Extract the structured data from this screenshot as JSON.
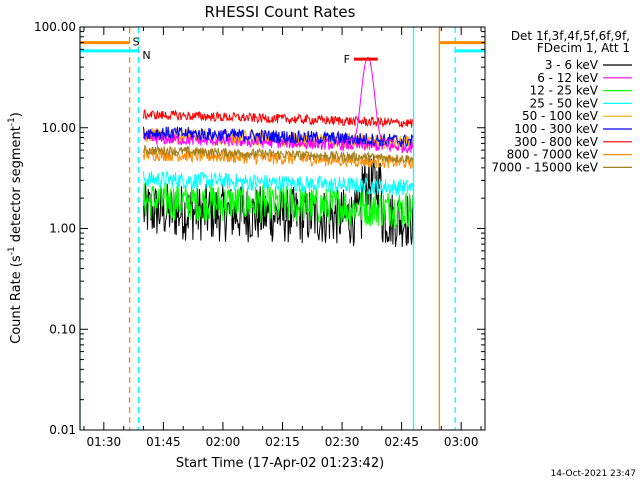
{
  "chart_data": {
    "type": "line",
    "title": "RHESSI Count Rates",
    "xlabel": "Start Time (17-Apr-02 01:23:42)",
    "ylabel_main": "Count Rate (s",
    "ylabel_sup1": "-1",
    "ylabel_mid": " detector segment",
    "ylabel_sup2": "-1",
    "ylabel_end": ")",
    "yscale": "log",
    "ylim": [
      0.01,
      100
    ],
    "xlim_minutes": [
      84,
      186
    ],
    "x_tick_labels": [
      {
        "m": 90,
        "label": "01:30"
      },
      {
        "m": 105,
        "label": "01:45"
      },
      {
        "m": 120,
        "label": "02:00"
      },
      {
        "m": 135,
        "label": "02:15"
      },
      {
        "m": 150,
        "label": "02:30"
      },
      {
        "m": 165,
        "label": "02:45"
      },
      {
        "m": 180,
        "label": "03:00"
      }
    ],
    "y_tick_labels": [
      {
        "v": 100,
        "label": "100.00"
      },
      {
        "v": 10,
        "label": "10.00"
      },
      {
        "v": 1,
        "label": "1.00"
      },
      {
        "v": 0.1,
        "label": "0.10"
      },
      {
        "v": 0.01,
        "label": "0.01"
      }
    ],
    "legend_header": [
      "Det 1f,3f,4f,5f,6f,9f,",
      "FDecim 1, Att 1"
    ],
    "series": [
      {
        "name": "3 - 6 keV",
        "color": "#000000",
        "start_m": 100,
        "end_m": 168,
        "base": 1.5,
        "noise": 0.3
      },
      {
        "name": "6 - 12 keV",
        "color": "#ff00ff",
        "start_m": 100,
        "end_m": 168,
        "base": 7.8,
        "noise": 0.06
      },
      {
        "name": "12 - 25 keV",
        "color": "#00ff00",
        "start_m": 100,
        "end_m": 168,
        "base": 1.9,
        "noise": 0.2
      },
      {
        "name": "25 - 50 keV",
        "color": "#00ffff",
        "start_m": 100,
        "end_m": 168,
        "base": 3.1,
        "noise": 0.09
      },
      {
        "name": "50 - 100 keV",
        "color": "#ffa500",
        "start_m": 100,
        "end_m": 168,
        "base": 8.5,
        "noise": 0.08
      },
      {
        "name": "100 - 300 keV",
        "color": "#0000ff",
        "start_m": 100,
        "end_m": 168,
        "base": 9.0,
        "noise": 0.07
      },
      {
        "name": "300 - 800 keV",
        "color": "#ff0000",
        "start_m": 100,
        "end_m": 168,
        "base": 13.5,
        "noise": 0.05
      },
      {
        "name": "800 - 7000 keV",
        "color": "#ff8c00",
        "start_m": 100,
        "end_m": 168,
        "base": 5.5,
        "noise": 0.07
      },
      {
        "name": "7000 - 15000 keV",
        "color": "#a08020",
        "start_m": 100,
        "end_m": 168,
        "base": 6.0,
        "noise": 0.05
      }
    ],
    "flare": {
      "label": "F",
      "color": "#ff0000",
      "start_m": 153,
      "end_m": 159,
      "level": 48,
      "peak_m": 156.5,
      "peak": 50,
      "curve_color": "#ff00ff"
    },
    "saa": {
      "label": "S",
      "color": "#ff8c00",
      "start_m": 84,
      "end_m": 96.5,
      "resume_m": 174.5,
      "level": 70
    },
    "night": {
      "label": "N",
      "color": "#00ffff",
      "start_m": 84,
      "end_m": 98.7,
      "resume_m": 178.5,
      "level": 58
    },
    "markers": [
      {
        "m": 84,
        "color": "#00ffff",
        "dash": false
      },
      {
        "m": 96.5,
        "color": "#ff8c00",
        "dash": true
      },
      {
        "m": 98.7,
        "color": "#00ffff",
        "dash": true
      },
      {
        "m": 168,
        "color": "#00ffff",
        "dash": false
      },
      {
        "m": 174.5,
        "color": "#ff8c00",
        "dash": false
      },
      {
        "m": 178.5,
        "color": "#00ffff",
        "dash": true
      }
    ],
    "timestamp": "14-Oct-2021 23:47"
  }
}
